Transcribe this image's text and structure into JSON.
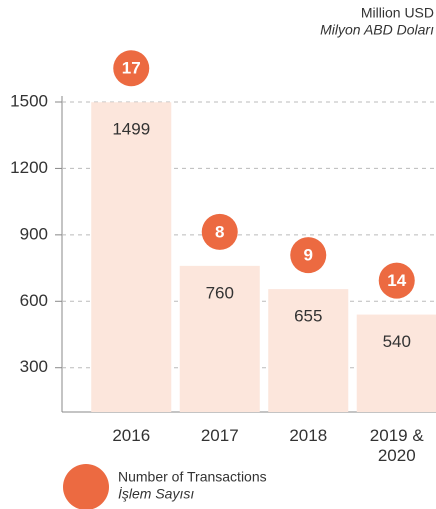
{
  "chart_data": {
    "type": "bar",
    "unit_label": "Million USD",
    "unit_label_tr": "Milyon ABD Doları",
    "categories": [
      "2016",
      "2017",
      "2018",
      "2019 & 2020"
    ],
    "values": [
      1499,
      760,
      655,
      540
    ],
    "color": "#fce6dc",
    "transactions": {
      "name": "Number of Transactions",
      "name_tr": "İşlem Sayısı",
      "color": "#ec6a41",
      "values": [
        17,
        8,
        9,
        14
      ]
    },
    "ylim": [
      100,
      1500
    ],
    "yticks": [
      300,
      600,
      900,
      1200,
      1500
    ],
    "grid": true
  }
}
